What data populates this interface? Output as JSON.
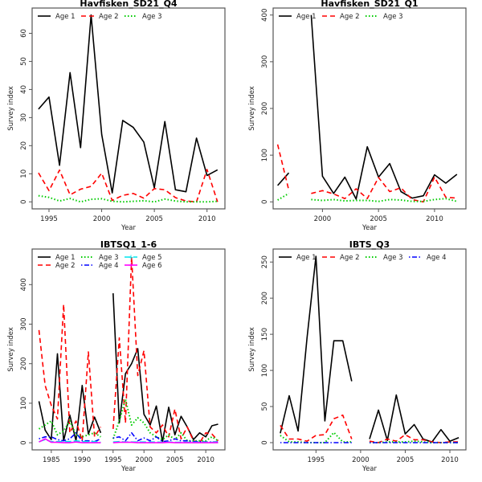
{
  "chart_data": [
    {
      "type": "line",
      "title": "Havfisken_SD21_Q4",
      "xlabel": "Year",
      "ylabel": "Survey index",
      "xlim": [
        1993.4,
        2011.7
      ],
      "ylim": [
        -2.5,
        69
      ],
      "xticks": [
        1995,
        2000,
        2005,
        2010
      ],
      "yticks": [
        0,
        10,
        20,
        30,
        40,
        50,
        60
      ],
      "legend_position": "top",
      "x": [
        1994,
        1995,
        1996,
        1997,
        1998,
        1999,
        2000,
        2001,
        2002,
        2003,
        2004,
        2005,
        2006,
        2007,
        2008,
        2009,
        2010,
        2011
      ],
      "series": [
        {
          "name": "Age 1",
          "color": "#000000",
          "style": "solid",
          "values": [
            33,
            37.3,
            13,
            46,
            19.3,
            66.5,
            24,
            3.2,
            29,
            26.5,
            21.3,
            5,
            28.6,
            4.3,
            3.6,
            22.7,
            9.4,
            11.4
          ]
        },
        {
          "name": "Age 2",
          "color": "#ff0000",
          "style": "dashed",
          "values": [
            10.3,
            4,
            11.3,
            2.5,
            4.5,
            5.5,
            10.2,
            0.5,
            2.3,
            3,
            1.3,
            4.7,
            4.3,
            1.5,
            0.3,
            0,
            11.5,
            0
          ]
        },
        {
          "name": "Age 3",
          "color": "#00cc00",
          "style": "dotted",
          "values": [
            2.2,
            1.6,
            0.3,
            1.2,
            0,
            0.9,
            1.1,
            0.2,
            0,
            0.2,
            0.4,
            0,
            1,
            0.3,
            0,
            0,
            0,
            0.2
          ]
        }
      ]
    },
    {
      "type": "line",
      "title": "Havfisken_SD21_Q1",
      "xlabel": "Year",
      "ylabel": "Survey index",
      "xlim": [
        1995.6,
        2012.8
      ],
      "ylim": [
        -15,
        415
      ],
      "xticks": [
        2000,
        2005,
        2010
      ],
      "yticks": [
        0,
        100,
        200,
        300,
        400
      ],
      "legend_position": "top",
      "x": [
        1996,
        1997,
        1998,
        1999,
        2000,
        2001,
        2002,
        2003,
        2004,
        2005,
        2006,
        2007,
        2008,
        2009,
        2010,
        2011,
        2012
      ],
      "series": [
        {
          "name": "Age 1",
          "color": "#000000",
          "style": "solid",
          "values": [
            35,
            62,
            null,
            400,
            55,
            18,
            53,
            6,
            118,
            53,
            82,
            22,
            8,
            13,
            58,
            40,
            59
          ]
        },
        {
          "name": "Age 2",
          "color": "#ff0000",
          "style": "dashed",
          "values": [
            123,
            25,
            null,
            18,
            24,
            17,
            7,
            28,
            7,
            52,
            22,
            30,
            5,
            0,
            53,
            10,
            8
          ]
        },
        {
          "name": "Age 3",
          "color": "#00cc00",
          "style": "dotted",
          "values": [
            4,
            18,
            null,
            5,
            3,
            5,
            2,
            3,
            3,
            1,
            5,
            4,
            1,
            1,
            5,
            7,
            1
          ]
        }
      ]
    },
    {
      "type": "line",
      "title": "IBTSQ1_1-6",
      "xlabel": "Year",
      "ylabel": "Survey index",
      "xlim": [
        1981.9,
        2013.1
      ],
      "ylim": [
        -18,
        490
      ],
      "xticks": [
        1985,
        1990,
        1995,
        2000,
        2005,
        2010
      ],
      "yticks": [
        0,
        100,
        200,
        300,
        400
      ],
      "legend_position": "top",
      "x": [
        1983,
        1984,
        1985,
        1986,
        1987,
        1988,
        1989,
        1990,
        1991,
        1992,
        1993,
        1994,
        1995,
        1996,
        1997,
        1998,
        1999,
        2000,
        2001,
        2002,
        2003,
        2004,
        2005,
        2006,
        2007,
        2008,
        2009,
        2010,
        2011,
        2012
      ],
      "series": [
        {
          "name": "Age 1",
          "color": "#000000",
          "style": "solid",
          "values": [
            105,
            32,
            8,
            225,
            5,
            70,
            5,
            145,
            22,
            65,
            25,
            null,
            378,
            50,
            175,
            200,
            238,
            72,
            45,
            93,
            3,
            90,
            20,
            67,
            40,
            8,
            25,
            15,
            43,
            47
          ]
        },
        {
          "name": "Age 2",
          "color": "#ff0000",
          "style": "dashed",
          "values": [
            285,
            145,
            95,
            60,
            350,
            25,
            55,
            5,
            230,
            15,
            40,
            null,
            35,
            265,
            50,
            470,
            170,
            233,
            40,
            25,
            45,
            15,
            85,
            10,
            40,
            5,
            0,
            25,
            22,
            5
          ]
        },
        {
          "name": "Age 3",
          "color": "#00cc00",
          "style": "dotted",
          "values": [
            35,
            45,
            55,
            20,
            30,
            55,
            20,
            15,
            20,
            25,
            15,
            null,
            10,
            55,
            110,
            45,
            63,
            50,
            25,
            15,
            8,
            20,
            8,
            25,
            5,
            5,
            5,
            5,
            15,
            5
          ]
        },
        {
          "name": "Age 4",
          "color": "#0000ff",
          "style": "dotdash",
          "values": [
            10,
            15,
            15,
            8,
            5,
            10,
            25,
            5,
            5,
            3,
            10,
            null,
            12,
            15,
            5,
            25,
            5,
            12,
            5,
            15,
            3,
            5,
            10,
            5,
            5,
            3,
            3,
            2,
            2,
            2
          ]
        },
        {
          "name": "Age 5",
          "color": "#00e5ee",
          "style": "longdash",
          "values": [
            3,
            8,
            3,
            3,
            3,
            3,
            5,
            3,
            3,
            3,
            1,
            null,
            2,
            3,
            2,
            2,
            2,
            2,
            2,
            2,
            1,
            2,
            1,
            1,
            1,
            1,
            1,
            1,
            1,
            1
          ]
        },
        {
          "name": "Age 6",
          "color": "#ff00ff",
          "style": "solid-marker",
          "values": [
            2,
            10,
            1,
            1,
            0,
            0,
            2,
            0,
            0,
            0,
            0,
            null,
            0,
            1,
            1,
            1,
            0,
            0,
            0,
            0,
            0,
            1,
            0,
            0,
            0,
            0,
            0,
            0,
            0,
            0
          ]
        }
      ]
    },
    {
      "type": "line",
      "title": "IBTS_Q3",
      "xlabel": "Year",
      "ylabel": "Survey index",
      "xlim": [
        1990.2,
        2011.8
      ],
      "ylim": [
        -10,
        268
      ],
      "xticks": [
        1995,
        2000,
        2005,
        2010
      ],
      "yticks": [
        0,
        50,
        100,
        150,
        200,
        250
      ],
      "legend_position": "top",
      "x": [
        1991,
        1992,
        1993,
        1994,
        1995,
        1996,
        1997,
        1998,
        1999,
        2000,
        2001,
        2002,
        2003,
        2004,
        2005,
        2006,
        2007,
        2008,
        2009,
        2010,
        2011
      ],
      "series": [
        {
          "name": "Age 1",
          "color": "#000000",
          "style": "solid",
          "values": [
            13,
            65,
            16,
            145,
            258,
            30,
            141,
            141,
            85,
            null,
            5,
            45,
            3,
            66,
            12,
            25,
            5,
            1,
            18,
            2,
            7
          ]
        },
        {
          "name": "Age 2",
          "color": "#ff0000",
          "style": "dashed",
          "values": [
            24,
            5,
            5,
            2,
            10,
            11,
            33,
            38,
            5,
            null,
            2,
            0,
            5,
            2,
            11,
            4,
            4,
            1,
            0,
            1,
            1
          ]
        },
        {
          "name": "Age 3",
          "color": "#00cc00",
          "style": "dotted",
          "values": [
            10,
            1,
            1,
            0,
            0,
            0,
            14,
            1,
            1,
            null,
            0,
            0,
            1,
            1,
            1,
            2,
            1,
            0,
            0,
            0,
            0
          ]
        },
        {
          "name": "Age 4",
          "color": "#0000ff",
          "style": "dotdash",
          "values": [
            0,
            0,
            0,
            0,
            0,
            0,
            0,
            0,
            0,
            null,
            0,
            0,
            0,
            0,
            0,
            0,
            0,
            0,
            0,
            0,
            0
          ]
        }
      ]
    }
  ]
}
